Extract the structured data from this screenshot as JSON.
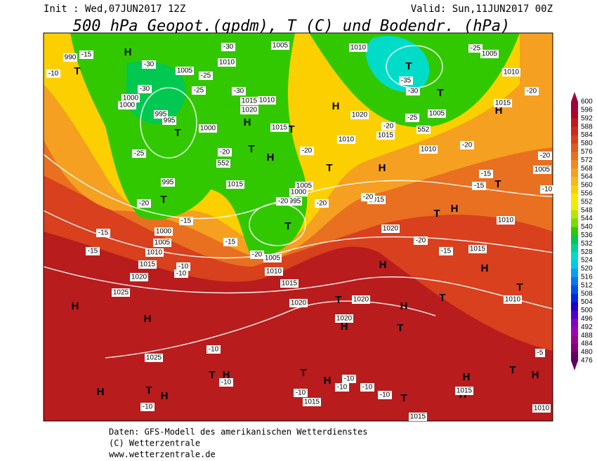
{
  "header": {
    "init": "Init : Wed,07JUN2017 12Z",
    "valid": "Valid: Sun,11JUN2017 00Z",
    "title": "500 hPa Geopot.(gpdm), T (C) und Bodendr. (hPa)"
  },
  "colorbar": {
    "levels": [
      600,
      596,
      592,
      588,
      584,
      580,
      576,
      572,
      568,
      564,
      560,
      556,
      552,
      548,
      544,
      540,
      536,
      532,
      528,
      524,
      520,
      516,
      512,
      508,
      504,
      500,
      496,
      492,
      488,
      484,
      480,
      476
    ],
    "colors": [
      "#a0003c",
      "#b40028",
      "#c01818",
      "#cc2a1a",
      "#d8401e",
      "#e05a1e",
      "#e87020",
      "#f08a20",
      "#f5a020",
      "#f8b818",
      "#fcd000",
      "#ffe600",
      "#e6f000",
      "#b4e600",
      "#78dc00",
      "#32c800",
      "#00c850",
      "#00d296",
      "#00dcc8",
      "#00c8f0",
      "#00a0f0",
      "#0078f0",
      "#0050e6",
      "#0028dc",
      "#1e00c8",
      "#5000c8",
      "#8200c8",
      "#a000b4",
      "#9b0096",
      "#820078",
      "#640064"
    ]
  },
  "map": {
    "labels": [
      "H",
      "T",
      "T",
      "H",
      "T",
      "H",
      "T",
      "T",
      "T",
      "H",
      "T",
      "T",
      "H",
      "T",
      "H",
      "T",
      "H",
      "T",
      "H",
      "H",
      "T",
      "T",
      "H",
      "T",
      "H",
      "T",
      "H",
      "H",
      "T",
      "H",
      "H",
      "T",
      "H",
      "T",
      "H",
      "T",
      "H",
      "T",
      "H",
      "H",
      "990",
      "1005",
      "1000",
      "1000",
      "995",
      "995",
      "1000",
      "1010",
      "1015",
      "1020",
      "1010",
      "1015",
      "1005",
      "1010",
      "1005",
      "1010",
      "1015",
      "1005",
      "1010",
      "1020",
      "1015",
      "1010",
      "995",
      "1015",
      "1005",
      "1000",
      "995",
      "1015",
      "1020",
      "1010",
      "1015",
      "1000",
      "1005",
      "1010",
      "1015",
      "1020",
      "1025",
      "1005",
      "1010",
      "1015",
      "1020",
      "1020",
      "1020",
      "1025",
      "1005",
      "1010",
      "1015",
      "1015",
      "1015",
      "1010",
      "-15",
      "-10",
      "-30",
      "-25",
      "-25",
      "-30",
      "-30",
      "-30",
      "-25",
      "-20",
      "-20",
      "-15",
      "-15",
      "-15",
      "-15",
      "-10",
      "-10",
      "-20",
      "-20",
      "-20",
      "-20",
      "-20",
      "-20",
      "-15",
      "-15",
      "-15",
      "-20",
      "-20",
      "-20",
      "-25",
      "-35",
      "-30",
      "-25",
      "-20",
      "-10",
      "-10",
      "-10",
      "-10",
      "-10",
      "-10",
      "-10",
      "-10",
      "-5",
      "-10",
      "552",
      "552"
    ]
  },
  "footer": {
    "line1": "Daten: GFS-Modell des amerikanischen Wetterdienstes",
    "line2": "(C) Wetterzentrale",
    "line3": "www.wetterzentrale.de"
  }
}
